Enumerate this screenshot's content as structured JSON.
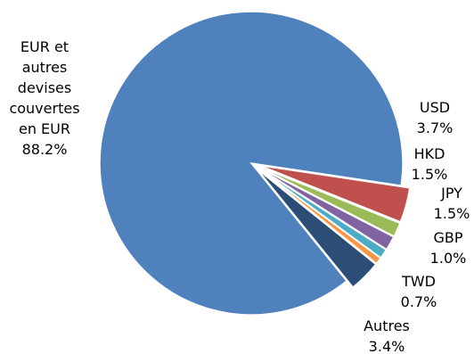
{
  "chart_data": {
    "type": "pie",
    "title": "",
    "slices": [
      {
        "label_lines": [
          "EUR et",
          "autres",
          "devises",
          "couvertes",
          "en EUR"
        ],
        "value_label": "88.2%",
        "value": 88.2,
        "color": "#4f81bd",
        "explode": false
      },
      {
        "label_lines": [
          "USD"
        ],
        "value_label": "3.7%",
        "value": 3.7,
        "color": "#c0504d",
        "explode": true
      },
      {
        "label_lines": [
          "HKD"
        ],
        "value_label": "1.5%",
        "value": 1.5,
        "color": "#9bbb59",
        "explode": true
      },
      {
        "label_lines": [
          "JPY"
        ],
        "value_label": "1.5%",
        "value": 1.5,
        "color": "#8064a2",
        "explode": true
      },
      {
        "label_lines": [
          "GBP"
        ],
        "value_label": "1.0%",
        "value": 1.0,
        "color": "#4bacc6",
        "explode": true
      },
      {
        "label_lines": [
          "TWD"
        ],
        "value_label": "0.7%",
        "value": 0.7,
        "color": "#f79646",
        "explode": true
      },
      {
        "label_lines": [
          "Autres"
        ],
        "value_label": "3.4%",
        "value": 3.4,
        "color": "#2c4d75",
        "explode": true
      }
    ]
  }
}
